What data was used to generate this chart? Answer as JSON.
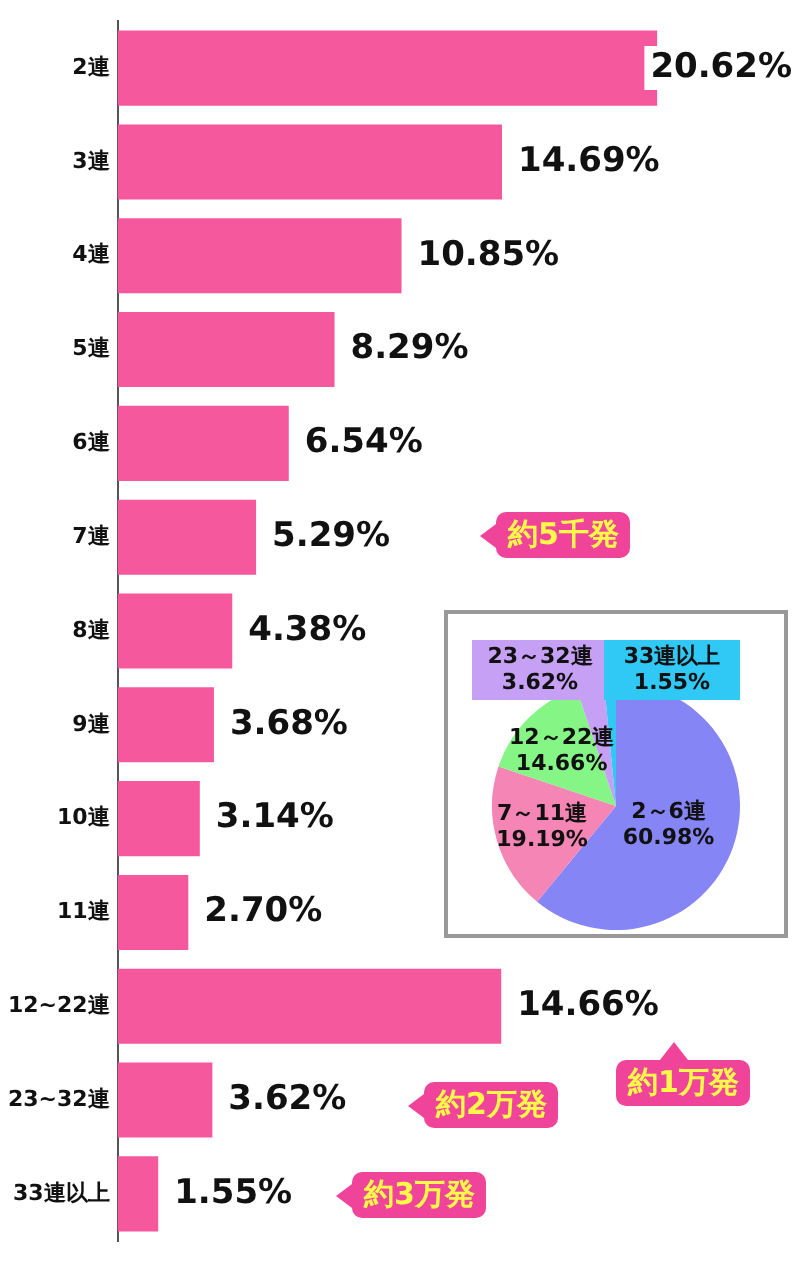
{
  "chart_data": [
    {
      "type": "bar",
      "orientation": "horizontal",
      "categories": [
        "2連",
        "3連",
        "4連",
        "5連",
        "6連",
        "7連",
        "8連",
        "9連",
        "10連",
        "11連",
        "12~22連",
        "23~32連",
        "33連以上"
      ],
      "values": [
        20.62,
        14.69,
        10.85,
        8.29,
        6.54,
        5.29,
        4.38,
        3.68,
        3.14,
        2.7,
        14.66,
        3.62,
        1.55
      ],
      "value_labels": [
        "20.62%",
        "14.69%",
        "10.85%",
        "8.29%",
        "6.54%",
        "5.29%",
        "4.38%",
        "3.68%",
        "3.14%",
        "2.70%",
        "14.66%",
        "3.62%",
        "1.55%"
      ],
      "color": "#f5589c",
      "grid": false,
      "legend": false,
      "annotations": [
        "約5千発",
        "約1万発",
        "約2万発",
        "約3万発"
      ]
    },
    {
      "type": "pie",
      "categories": [
        "2～6連",
        "7～11連",
        "12～22連",
        "23～32連",
        "33連以上"
      ],
      "values": [
        60.98,
        19.19,
        14.66,
        3.62,
        1.55
      ],
      "colors": [
        "#8585f5",
        "#f585b5",
        "#85f585",
        "#c5a0f5",
        "#30c8f5"
      ],
      "value_labels": [
        "60.98%",
        "19.19%",
        "14.66%",
        "3.62%",
        "1.55%"
      ],
      "legend": false
    }
  ]
}
